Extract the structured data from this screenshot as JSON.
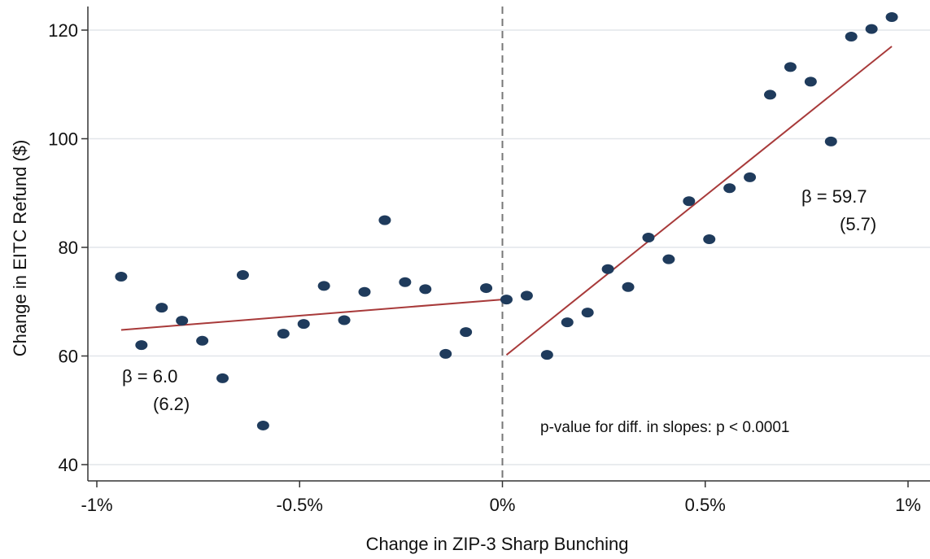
{
  "chart_data": {
    "type": "scatter",
    "xlabel": "Change in ZIP-3 Sharp Bunching",
    "ylabel": "Change in EITC Refund ($)",
    "xlim": [
      -1.0,
      1.05
    ],
    "ylim": [
      38,
      125
    ],
    "x_ticks": [
      -1,
      -0.5,
      0,
      0.5,
      1
    ],
    "x_tick_labels": [
      "-1%",
      "-0.5%",
      "0%",
      "0.5%",
      "1%"
    ],
    "y_ticks": [
      40,
      60,
      80,
      100,
      120
    ],
    "y_tick_labels": [
      "40",
      "60",
      "80",
      "100",
      "120"
    ],
    "grid": "horizontal",
    "cutoff_x": 0,
    "colors": {
      "points": "#1f3b5c",
      "fit": "#a83a3a",
      "grid": "#e2e6ea",
      "cutoff": "#777777"
    },
    "points": [
      {
        "x": -0.94,
        "y": 74.6
      },
      {
        "x": -0.89,
        "y": 62.0
      },
      {
        "x": -0.84,
        "y": 68.9
      },
      {
        "x": -0.79,
        "y": 66.5
      },
      {
        "x": -0.74,
        "y": 62.8
      },
      {
        "x": -0.69,
        "y": 55.9
      },
      {
        "x": -0.64,
        "y": 74.9
      },
      {
        "x": -0.59,
        "y": 47.2
      },
      {
        "x": -0.54,
        "y": 64.1
      },
      {
        "x": -0.49,
        "y": 65.9
      },
      {
        "x": -0.44,
        "y": 72.9
      },
      {
        "x": -0.39,
        "y": 66.6
      },
      {
        "x": -0.34,
        "y": 71.8
      },
      {
        "x": -0.29,
        "y": 85.0
      },
      {
        "x": -0.24,
        "y": 73.6
      },
      {
        "x": -0.19,
        "y": 72.3
      },
      {
        "x": -0.14,
        "y": 60.4
      },
      {
        "x": -0.09,
        "y": 64.4
      },
      {
        "x": -0.04,
        "y": 72.5
      },
      {
        "x": 0.01,
        "y": 70.4
      },
      {
        "x": 0.06,
        "y": 71.1
      },
      {
        "x": 0.11,
        "y": 60.2
      },
      {
        "x": 0.16,
        "y": 66.2
      },
      {
        "x": 0.21,
        "y": 68.0
      },
      {
        "x": 0.26,
        "y": 76.0
      },
      {
        "x": 0.31,
        "y": 72.7
      },
      {
        "x": 0.36,
        "y": 81.8
      },
      {
        "x": 0.41,
        "y": 77.8
      },
      {
        "x": 0.46,
        "y": 88.5
      },
      {
        "x": 0.51,
        "y": 81.5
      },
      {
        "x": 0.56,
        "y": 90.9
      },
      {
        "x": 0.61,
        "y": 92.9
      },
      {
        "x": 0.66,
        "y": 108.1
      },
      {
        "x": 0.71,
        "y": 113.2
      },
      {
        "x": 0.76,
        "y": 110.5
      },
      {
        "x": 0.81,
        "y": 99.5
      },
      {
        "x": 0.86,
        "y": 118.8
      },
      {
        "x": 0.91,
        "y": 120.2
      },
      {
        "x": 0.96,
        "y": 122.4
      }
    ],
    "fit_lines": [
      {
        "x": [
          -0.94,
          0.0
        ],
        "y": [
          64.8,
          70.4
        ]
      },
      {
        "x": [
          0.01,
          0.96
        ],
        "y": [
          60.2,
          117.0
        ]
      }
    ],
    "annotations": {
      "left_beta": "β = 6.0",
      "left_se": "(6.2)",
      "right_beta": "β = 59.7",
      "right_se": "(5.7)",
      "pvalue": "p-value for diff. in slopes: p < 0.0001"
    }
  }
}
